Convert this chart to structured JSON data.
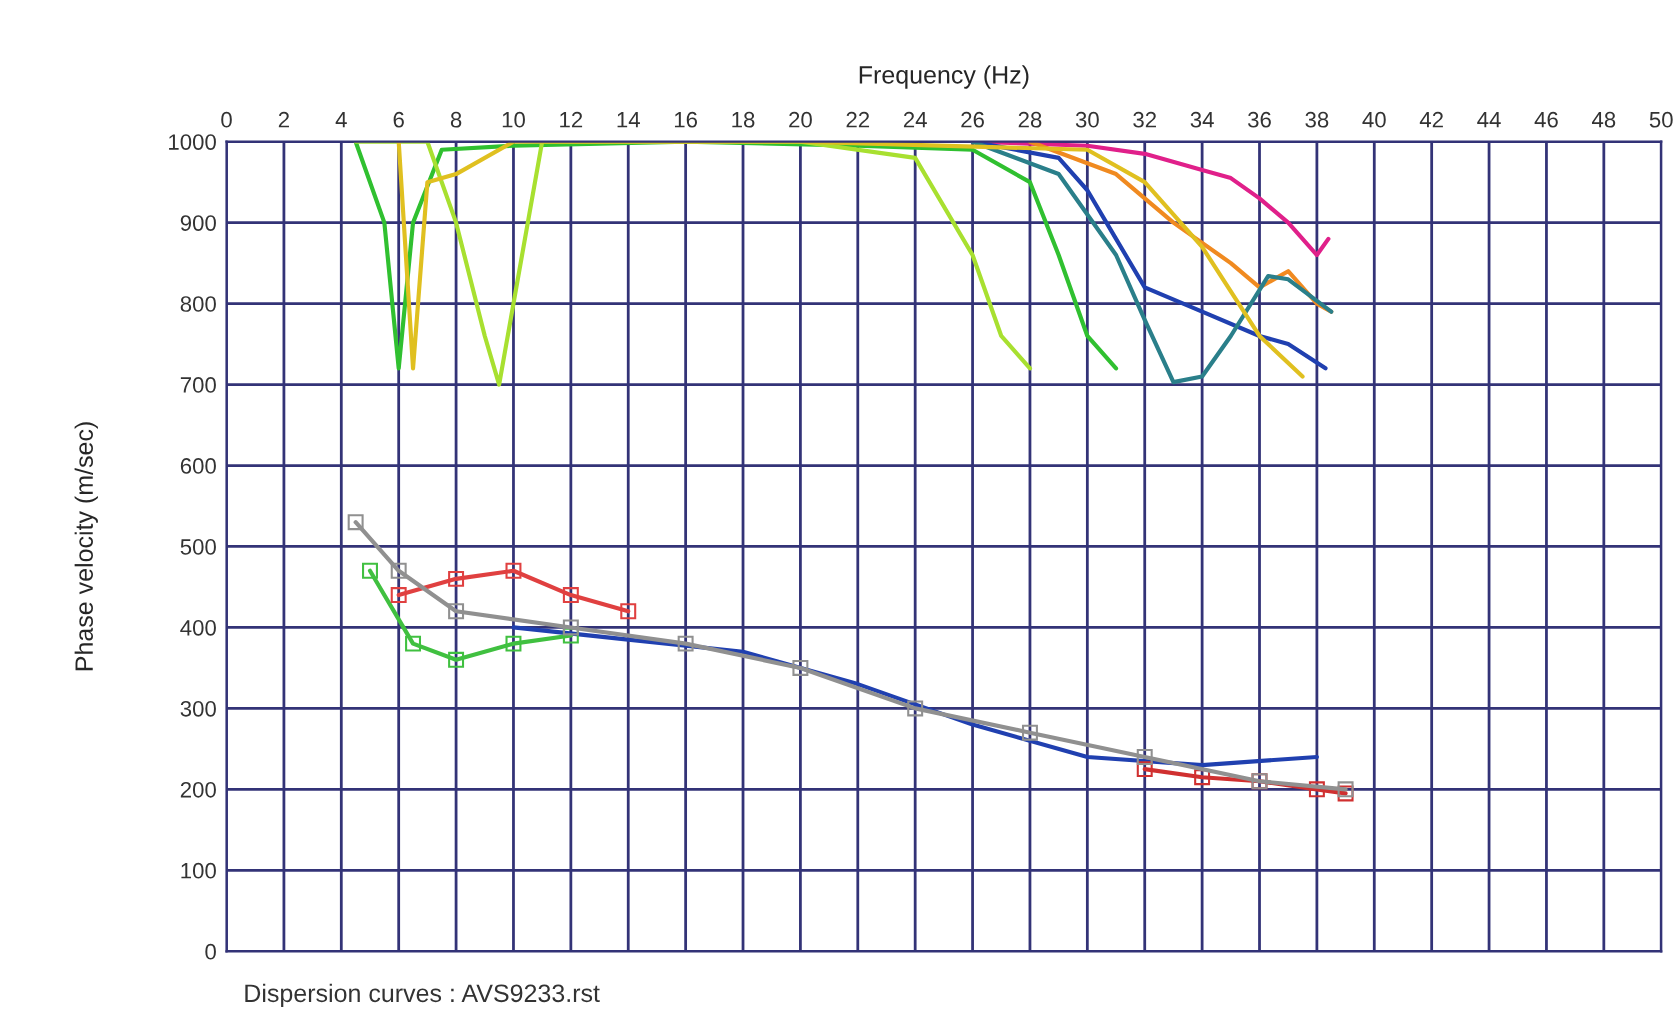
{
  "chart_data": {
    "type": "line",
    "xlabel": "Frequency (Hz)",
    "ylabel": "Phase velocity (m/sec)",
    "annotations": [
      "Dispersion curves : AVS9233.rst"
    ],
    "xlim": [
      0,
      50
    ],
    "xticks": [
      0,
      2,
      4,
      6,
      8,
      10,
      12,
      14,
      16,
      18,
      20,
      22,
      24,
      26,
      28,
      30,
      32,
      34,
      36,
      38,
      40,
      42,
      44,
      46,
      48,
      50
    ],
    "ylim": [
      0,
      1000
    ],
    "yticks": [
      0,
      100,
      200,
      300,
      400,
      500,
      600,
      700,
      800,
      900,
      1000
    ],
    "grid": true,
    "marker": "none",
    "line_style": "solid",
    "series": [
      {
        "color": "#e0208a",
        "x": [
          26,
          30,
          32,
          34,
          35,
          36,
          37,
          38,
          38.4
        ],
        "values": [
          1000,
          995,
          985,
          965,
          955,
          930,
          900,
          860,
          880
        ]
      },
      {
        "color": "#f08a20",
        "x": [
          28,
          31,
          33,
          35,
          36,
          37,
          38,
          38.5
        ],
        "values": [
          1000,
          960,
          900,
          850,
          820,
          840,
          800,
          790
        ]
      },
      {
        "color": "#2040b0",
        "x": [
          26,
          29,
          30,
          31,
          32,
          34,
          36,
          37,
          38.3
        ],
        "values": [
          1000,
          980,
          940,
          880,
          820,
          790,
          760,
          750,
          720
        ]
      },
      {
        "color": "#2a7f8a",
        "x": [
          26,
          29,
          31,
          32,
          33,
          34,
          35,
          36.3,
          37,
          38.5
        ],
        "values": [
          1000,
          960,
          860,
          780,
          703,
          710,
          760,
          834,
          830,
          790
        ]
      },
      {
        "color": "#30c030",
        "x": [
          4.5,
          5.5,
          6,
          6.5,
          7.5,
          10,
          16,
          22,
          26,
          28,
          29,
          30,
          31
        ],
        "values": [
          1000,
          900,
          720,
          900,
          990,
          995,
          1000,
          995,
          990,
          950,
          860,
          760,
          720
        ]
      },
      {
        "color": "#a8e030",
        "x": [
          4.5,
          7,
          8,
          9,
          9.5,
          10,
          11,
          20,
          24,
          26,
          27,
          28
        ],
        "values": [
          1000,
          1000,
          900,
          760,
          700,
          800,
          1000,
          1000,
          980,
          860,
          760,
          720
        ]
      },
      {
        "color": "#e0c020",
        "x": [
          6,
          6.5,
          7,
          8,
          10,
          20,
          30,
          32,
          34,
          36,
          37.5
        ],
        "values": [
          1000,
          720,
          950,
          960,
          1000,
          1000,
          990,
          950,
          870,
          760,
          710
        ]
      },
      {
        "color": "#909090",
        "marker": "square",
        "x": [
          4.5,
          6,
          8,
          12,
          16,
          20,
          24,
          28,
          32,
          36,
          39
        ],
        "values": [
          530,
          470,
          420,
          400,
          380,
          350,
          300,
          270,
          240,
          210,
          200
        ]
      },
      {
        "color": "#e04040",
        "marker": "square",
        "x": [
          6,
          8,
          10,
          12,
          14
        ],
        "values": [
          440,
          460,
          470,
          440,
          420
        ]
      },
      {
        "color": "#40c040",
        "marker": "square",
        "x": [
          5,
          6.5,
          8,
          10,
          12
        ],
        "values": [
          470,
          380,
          360,
          380,
          390
        ]
      },
      {
        "color": "#2040b0",
        "x": [
          10,
          14,
          18,
          22,
          26,
          30,
          34,
          38
        ],
        "values": [
          400,
          385,
          370,
          330,
          280,
          240,
          230,
          240
        ]
      },
      {
        "color": "#d03030",
        "marker": "square",
        "x": [
          32,
          34,
          36,
          38,
          39
        ],
        "values": [
          225,
          215,
          210,
          200,
          195
        ]
      }
    ]
  }
}
